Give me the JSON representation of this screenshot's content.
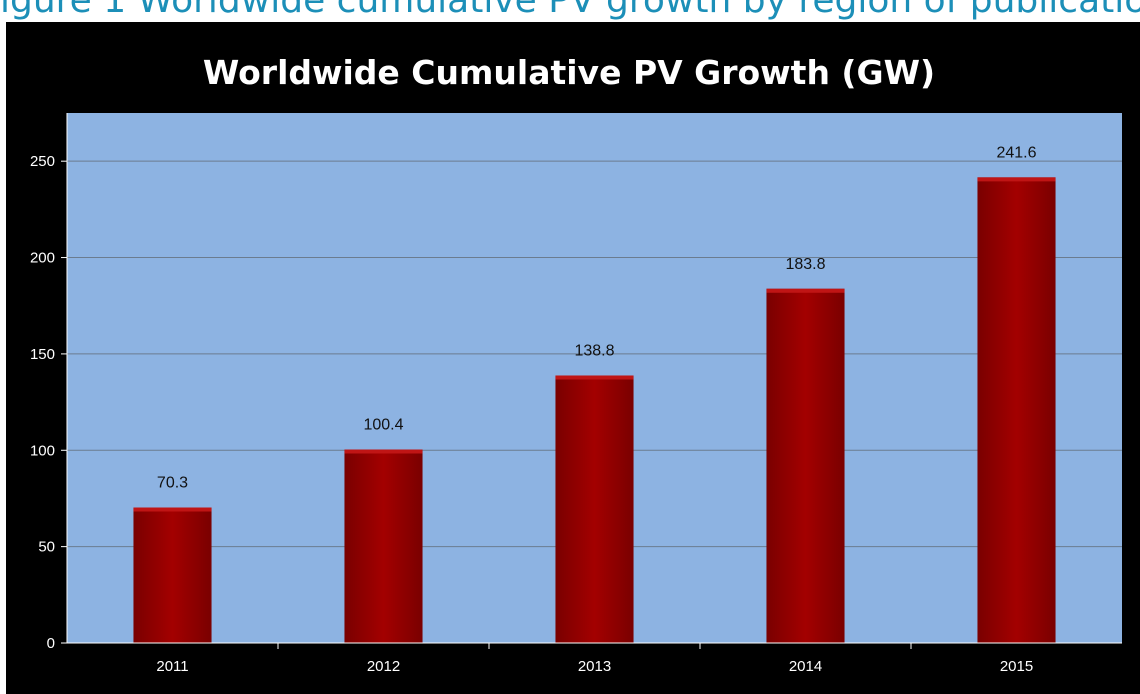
{
  "top_caption": "igure 1 Worldwide cumulative PV growth by region of publication",
  "colors": {
    "frame": "#000000",
    "plot_background": "#8db3e2",
    "bar": "#9b0000",
    "bar_highlight": "#c01515",
    "gridline": "#6b7c8f",
    "title": "#ffffff",
    "tick_labels": "#ffffff",
    "data_labels": "#111111"
  },
  "chart_data": {
    "type": "bar",
    "title": "Worldwide Cumulative PV Growth (GW)",
    "xlabel": "",
    "ylabel": "",
    "categories": [
      "2011",
      "2012",
      "2013",
      "2014",
      "2015"
    ],
    "values": [
      70.3,
      100.4,
      138.8,
      183.8,
      241.6
    ],
    "value_labels": [
      "70.3",
      "100.4",
      "138.8",
      "183.8",
      "241.6"
    ],
    "ylim": [
      0,
      275
    ],
    "yticks": [
      0,
      50,
      100,
      150,
      200,
      250
    ],
    "grid": true,
    "legend": "none"
  }
}
